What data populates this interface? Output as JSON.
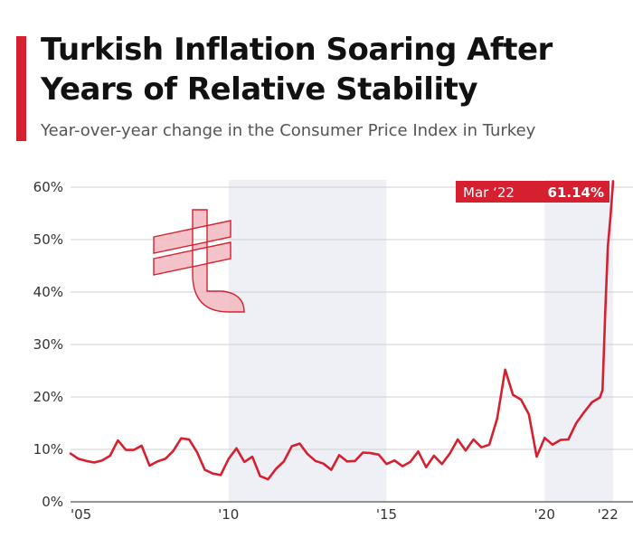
{
  "header": {
    "title": "Turkish Inflation Soaring After Years of Relative Stability",
    "subtitle": "Year-over-year change in the Consumer Price Index in Turkey"
  },
  "colors": {
    "accent": "#d7202f",
    "line": "#d7202f",
    "band": "#eef0f6",
    "grid": "#d0d0d0",
    "lira_symbol": "#f2b9bf"
  },
  "icon": {
    "name": "turkish-lira-icon"
  },
  "chart_data": {
    "type": "line",
    "title": "Turkish Inflation Soaring After Years of Relative Stability",
    "subtitle": "Year-over-year change in the Consumer Price Index in Turkey",
    "xlabel": "",
    "ylabel": "",
    "xlim": [
      "2005-01",
      "2022-03"
    ],
    "ylim": [
      0,
      60
    ],
    "grid": true,
    "x_ticks": [
      {
        "x": "2005-01",
        "label": "'05"
      },
      {
        "x": "2010-01",
        "label": "'10"
      },
      {
        "x": "2015-01",
        "label": "'15"
      },
      {
        "x": "2020-01",
        "label": "'20"
      },
      {
        "x": "2022-01",
        "label": "'22"
      }
    ],
    "y_ticks": [
      {
        "y": 0,
        "label": "0%"
      },
      {
        "y": 10,
        "label": "10%"
      },
      {
        "y": 20,
        "label": "20%"
      },
      {
        "y": 30,
        "label": "30%"
      },
      {
        "y": 40,
        "label": "40%"
      },
      {
        "y": 50,
        "label": "50%"
      },
      {
        "y": 60,
        "label": "60%"
      }
    ],
    "shaded_bands": [
      {
        "start": "2010-01",
        "end": "2015-01"
      },
      {
        "start": "2020-01",
        "end": "2022-03"
      }
    ],
    "annotation": {
      "x": "2022-03",
      "label": "Mar ‘22",
      "value_label": "61.14%"
    },
    "series": [
      {
        "points": [
          [
            "2005-01",
            9.2
          ],
          [
            "2005-04",
            8.2
          ],
          [
            "2005-07",
            7.8
          ],
          [
            "2005-10",
            7.5
          ],
          [
            "2006-01",
            7.9
          ],
          [
            "2006-04",
            8.8
          ],
          [
            "2006-07",
            11.7
          ],
          [
            "2006-10",
            9.9
          ],
          [
            "2007-01",
            9.9
          ],
          [
            "2007-04",
            10.7
          ],
          [
            "2007-07",
            6.9
          ],
          [
            "2007-10",
            7.7
          ],
          [
            "2008-01",
            8.2
          ],
          [
            "2008-04",
            9.7
          ],
          [
            "2008-07",
            12.1
          ],
          [
            "2008-10",
            11.9
          ],
          [
            "2009-01",
            9.5
          ],
          [
            "2009-04",
            6.1
          ],
          [
            "2009-07",
            5.4
          ],
          [
            "2009-10",
            5.1
          ],
          [
            "2010-01",
            8.2
          ],
          [
            "2010-04",
            10.2
          ],
          [
            "2010-07",
            7.6
          ],
          [
            "2010-10",
            8.6
          ],
          [
            "2011-01",
            4.9
          ],
          [
            "2011-04",
            4.3
          ],
          [
            "2011-07",
            6.3
          ],
          [
            "2011-10",
            7.7
          ],
          [
            "2012-01",
            10.6
          ],
          [
            "2012-04",
            11.1
          ],
          [
            "2012-07",
            9.1
          ],
          [
            "2012-10",
            7.8
          ],
          [
            "2013-01",
            7.3
          ],
          [
            "2013-04",
            6.1
          ],
          [
            "2013-07",
            8.9
          ],
          [
            "2013-10",
            7.7
          ],
          [
            "2014-01",
            7.8
          ],
          [
            "2014-04",
            9.4
          ],
          [
            "2014-07",
            9.3
          ],
          [
            "2014-10",
            9.0
          ],
          [
            "2015-01",
            7.2
          ],
          [
            "2015-04",
            7.9
          ],
          [
            "2015-07",
            6.8
          ],
          [
            "2015-10",
            7.6
          ],
          [
            "2016-01",
            9.6
          ],
          [
            "2016-04",
            6.6
          ],
          [
            "2016-07",
            8.8
          ],
          [
            "2016-10",
            7.2
          ],
          [
            "2017-01",
            9.2
          ],
          [
            "2017-04",
            11.9
          ],
          [
            "2017-07",
            9.8
          ],
          [
            "2017-10",
            11.9
          ],
          [
            "2018-01",
            10.4
          ],
          [
            "2018-04",
            10.9
          ],
          [
            "2018-07",
            15.9
          ],
          [
            "2018-10",
            25.2
          ],
          [
            "2019-01",
            20.4
          ],
          [
            "2019-04",
            19.5
          ],
          [
            "2019-07",
            16.7
          ],
          [
            "2019-10",
            8.6
          ],
          [
            "2020-01",
            12.2
          ],
          [
            "2020-04",
            10.9
          ],
          [
            "2020-07",
            11.8
          ],
          [
            "2020-10",
            11.9
          ],
          [
            "2021-01",
            15.0
          ],
          [
            "2021-04",
            17.1
          ],
          [
            "2021-07",
            19.0
          ],
          [
            "2021-10",
            19.9
          ],
          [
            "2021-11",
            21.3
          ],
          [
            "2021-12",
            36.1
          ],
          [
            "2022-01",
            48.7
          ],
          [
            "2022-02",
            54.4
          ],
          [
            "2022-03",
            61.14
          ]
        ]
      }
    ]
  }
}
